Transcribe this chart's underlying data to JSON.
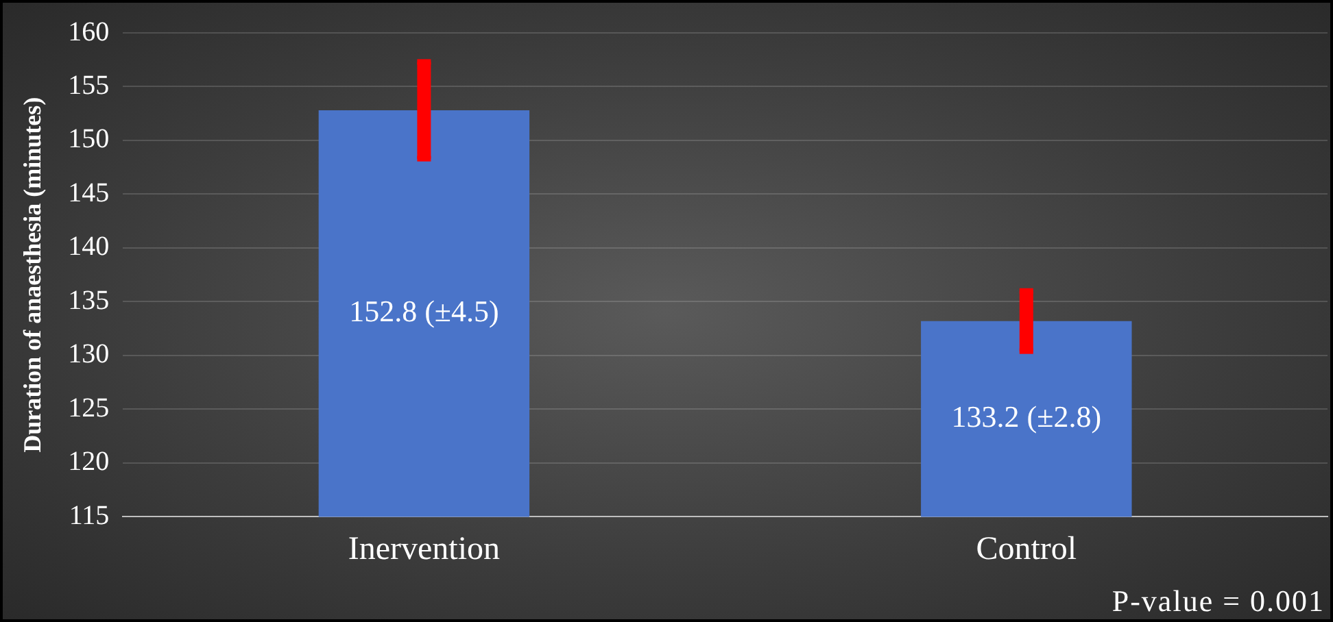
{
  "chart_data": {
    "type": "bar",
    "categories": [
      "Inervention",
      "Control"
    ],
    "values": [
      152.8,
      133.2
    ],
    "color": "#4a74c9",
    "errors": [
      4.5,
      2.8
    ],
    "value_labels": [
      "152.8 (±4.5)",
      "133.2 (±2.8)"
    ],
    "ylabel": "Duration of anaesthesia (minutes)",
    "ylim": [
      115,
      160
    ],
    "yticks": [
      115,
      120,
      125,
      130,
      135,
      140,
      145,
      150,
      155,
      160
    ],
    "grid": "y",
    "annotations": [
      "P-value = 0.001"
    ]
  }
}
